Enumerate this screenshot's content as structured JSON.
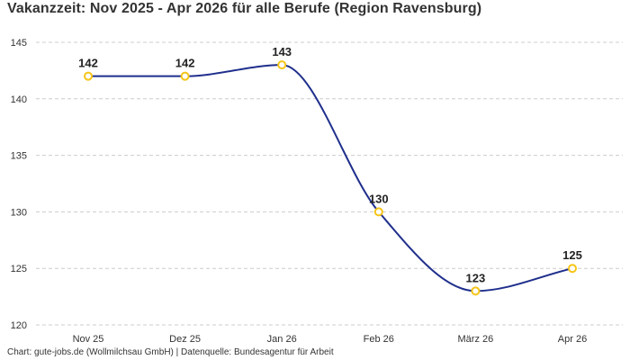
{
  "chart_data": {
    "type": "line",
    "title": "Vakanzzeit: Nov 2025 - Apr 2026 für alle Berufe (Region Ravensburg)",
    "xlabel": "",
    "ylabel": "",
    "categories": [
      "Nov 25",
      "Dez 25",
      "Jan 26",
      "Feb 26",
      "März 26",
      "Apr 26"
    ],
    "series": [
      {
        "values": [
          142,
          142,
          143,
          130,
          123,
          125
        ]
      }
    ],
    "ylim": [
      120,
      145
    ],
    "yticks": [
      120,
      125,
      130,
      135,
      140,
      145
    ],
    "grid": true,
    "legend": "none",
    "line_color": "#1f2f8c",
    "marker_color": "#f5c518",
    "grid_color": "#cccccc"
  },
  "footer": "Chart: gute-jobs.de (Wollmilchsau GmbH) | Datenquelle: Bundesagentur für Arbeit"
}
